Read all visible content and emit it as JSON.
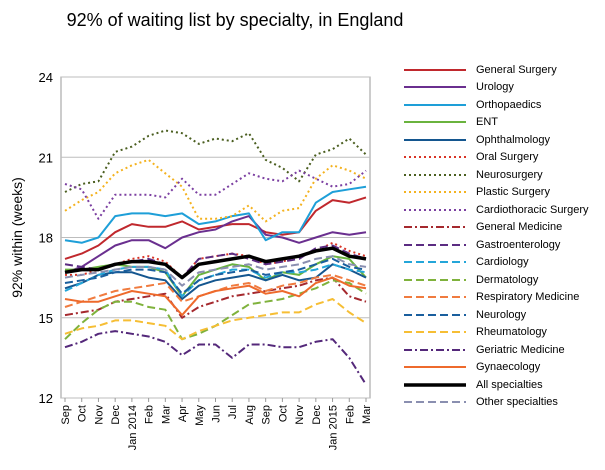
{
  "chart_data": {
    "type": "line",
    "title": "92% of waiting list by specialty, in England",
    "ylabel": "92% within (weeks)",
    "xlabel": "",
    "ylim": [
      12,
      24
    ],
    "yticks": [
      12,
      15,
      18,
      21,
      24
    ],
    "grid": "horizontal",
    "legend_position": "right",
    "categories": [
      "Sep",
      "Oct",
      "Nov",
      "Dec",
      "Jan 2014",
      "Feb",
      "Mar",
      "Apr",
      "May",
      "Jun",
      "Jul",
      "Aug",
      "Sep",
      "Oct",
      "Nov",
      "Dec",
      "Jan 2015",
      "Feb",
      "Mar"
    ],
    "series": [
      {
        "name": "General Surgery",
        "color": "#c0282d",
        "dash": "solid",
        "width": 2,
        "values": [
          17.2,
          17.4,
          17.7,
          18.2,
          18.5,
          18.4,
          18.4,
          18.6,
          18.3,
          18.4,
          18.5,
          18.5,
          18.2,
          18.1,
          18.2,
          19.0,
          19.4,
          19.3,
          19.5
        ]
      },
      {
        "name": "Urology",
        "color": "#6a2f8f",
        "dash": "solid",
        "width": 2,
        "values": [
          16.7,
          16.9,
          17.3,
          17.7,
          17.9,
          17.9,
          17.6,
          18.0,
          18.2,
          18.3,
          18.6,
          18.8,
          18.1,
          18.0,
          17.8,
          18.0,
          18.2,
          18.1,
          18.2
        ]
      },
      {
        "name": "Orthopaedics",
        "color": "#1e9fd8",
        "dash": "solid",
        "width": 2,
        "values": [
          17.9,
          17.8,
          18.0,
          18.8,
          18.9,
          18.9,
          18.8,
          18.9,
          18.5,
          18.6,
          18.8,
          18.9,
          17.9,
          18.2,
          18.2,
          19.3,
          19.7,
          19.8,
          19.9
        ]
      },
      {
        "name": "ENT",
        "color": "#6ab33e",
        "dash": "solid",
        "width": 2,
        "values": [
          16.8,
          16.8,
          16.9,
          17.0,
          16.9,
          16.9,
          16.7,
          15.8,
          16.6,
          16.8,
          17.0,
          16.9,
          16.4,
          16.7,
          16.6,
          17.0,
          17.3,
          17.2,
          16.5
        ]
      },
      {
        "name": "Ophthalmology",
        "color": "#14568f",
        "dash": "solid",
        "width": 2,
        "values": [
          16.1,
          16.3,
          16.6,
          16.7,
          16.7,
          16.5,
          16.4,
          15.7,
          16.2,
          16.4,
          16.5,
          16.6,
          16.4,
          16.6,
          16.4,
          16.5,
          17.0,
          16.8,
          16.5
        ]
      },
      {
        "name": "Oral Surgery",
        "color": "#d93326",
        "dash": "dot",
        "width": 2,
        "values": [
          16.6,
          16.6,
          16.8,
          17.0,
          17.2,
          17.3,
          17.1,
          16.5,
          17.2,
          17.3,
          17.4,
          17.3,
          17.0,
          17.1,
          17.3,
          17.5,
          17.8,
          17.5,
          17.3
        ]
      },
      {
        "name": "Neurosurgery",
        "color": "#4a5e1f",
        "dash": "dot",
        "width": 2,
        "values": [
          19.7,
          20.0,
          20.1,
          21.2,
          21.4,
          21.8,
          22.0,
          21.9,
          21.5,
          21.7,
          21.6,
          21.9,
          20.9,
          20.6,
          20.1,
          21.1,
          21.3,
          21.7,
          21.1
        ]
      },
      {
        "name": "Plastic Surgery",
        "color": "#f4b21f",
        "dash": "dot",
        "width": 2,
        "values": [
          19.0,
          19.4,
          19.7,
          20.4,
          20.7,
          20.9,
          20.4,
          19.9,
          18.7,
          18.7,
          18.8,
          19.2,
          18.6,
          19.0,
          19.1,
          20.2,
          20.7,
          20.5,
          20.2
        ]
      },
      {
        "name": "Cardiothoracic Surgery",
        "color": "#7b3fa1",
        "dash": "dot",
        "width": 2,
        "values": [
          20.0,
          19.8,
          18.7,
          19.6,
          19.6,
          19.6,
          19.5,
          20.2,
          19.6,
          19.6,
          20.0,
          20.4,
          20.2,
          20.1,
          20.5,
          20.2,
          19.9,
          20.0,
          20.5
        ]
      },
      {
        "name": "General Medicine",
        "color": "#a5292e",
        "dash": "dashdot",
        "width": 2,
        "values": [
          15.1,
          15.2,
          15.3,
          15.6,
          15.7,
          15.8,
          15.9,
          15.0,
          15.4,
          15.6,
          15.8,
          15.9,
          16.0,
          16.1,
          16.2,
          16.4,
          16.5,
          15.8,
          15.6
        ]
      },
      {
        "name": "Gastroenterology",
        "color": "#5b2c82",
        "dash": "dash",
        "width": 2,
        "values": [
          17.0,
          16.9,
          16.8,
          17.0,
          17.1,
          17.2,
          17.0,
          16.5,
          17.2,
          17.3,
          17.4,
          17.2,
          17.0,
          17.1,
          17.2,
          17.6,
          17.7,
          17.4,
          17.2
        ]
      },
      {
        "name": "Cardiology",
        "color": "#24a6d9",
        "dash": "dash",
        "width": 2,
        "values": [
          16.0,
          16.3,
          16.6,
          16.8,
          16.9,
          16.9,
          16.8,
          15.8,
          16.4,
          16.6,
          16.8,
          16.8,
          16.5,
          16.7,
          16.7,
          16.8,
          17.0,
          16.8,
          16.7
        ]
      },
      {
        "name": "Dermatology",
        "color": "#7fb23c",
        "dash": "dash",
        "width": 2,
        "values": [
          14.2,
          14.8,
          15.3,
          15.6,
          15.6,
          15.4,
          15.3,
          14.2,
          14.4,
          14.7,
          15.1,
          15.5,
          15.6,
          15.7,
          15.9,
          16.1,
          16.4,
          16.3,
          15.9
        ]
      },
      {
        "name": "Respiratory Medicine",
        "color": "#f07b3f",
        "dash": "dash",
        "width": 2,
        "values": [
          15.4,
          15.6,
          15.8,
          16.0,
          16.1,
          16.2,
          16.3,
          15.6,
          15.8,
          16.0,
          16.2,
          16.3,
          16.0,
          16.2,
          16.3,
          16.5,
          16.6,
          16.4,
          16.2
        ]
      },
      {
        "name": "Neurology",
        "color": "#1a5f9e",
        "dash": "dash",
        "width": 2,
        "values": [
          16.3,
          16.4,
          16.5,
          16.7,
          16.8,
          16.8,
          16.7,
          15.9,
          16.4,
          16.6,
          16.7,
          16.8,
          16.6,
          16.7,
          16.8,
          17.0,
          17.2,
          16.9,
          16.8
        ]
      },
      {
        "name": "Rheumatology",
        "color": "#f6be34",
        "dash": "dash",
        "width": 2,
        "values": [
          14.4,
          14.6,
          14.7,
          14.9,
          14.9,
          14.8,
          14.7,
          14.2,
          14.5,
          14.7,
          14.9,
          15.0,
          15.1,
          15.2,
          15.2,
          15.5,
          15.7,
          15.2,
          14.8
        ]
      },
      {
        "name": "Geriatric Medicine",
        "color": "#54287a",
        "dash": "dashdot",
        "width": 2,
        "values": [
          13.9,
          14.1,
          14.4,
          14.5,
          14.4,
          14.3,
          14.1,
          13.6,
          14.0,
          14.0,
          13.5,
          14.0,
          14.0,
          13.9,
          13.9,
          14.1,
          14.2,
          13.5,
          12.5
        ]
      },
      {
        "name": "Gynaecology",
        "color": "#ee6a2c",
        "dash": "solid",
        "width": 2,
        "values": [
          15.7,
          15.6,
          15.6,
          15.8,
          16.0,
          15.9,
          15.8,
          15.1,
          15.8,
          16.0,
          16.1,
          16.2,
          15.9,
          16.0,
          15.8,
          16.3,
          16.5,
          16.2,
          16.1
        ]
      },
      {
        "name": "All specialties",
        "color": "#000000",
        "dash": "solid",
        "width": 3.5,
        "values": [
          16.7,
          16.8,
          16.8,
          17.0,
          17.1,
          17.1,
          17.0,
          16.5,
          17.0,
          17.1,
          17.2,
          17.3,
          17.1,
          17.2,
          17.3,
          17.5,
          17.6,
          17.3,
          17.2
        ]
      },
      {
        "name": "Other specialties",
        "color": "#8a8fb0",
        "dash": "dash",
        "width": 2,
        "values": [
          16.5,
          16.6,
          16.7,
          16.8,
          16.9,
          16.9,
          16.8,
          16.2,
          16.7,
          16.8,
          16.9,
          17.0,
          16.8,
          16.9,
          17.0,
          17.2,
          17.3,
          17.0,
          16.9
        ]
      }
    ]
  }
}
